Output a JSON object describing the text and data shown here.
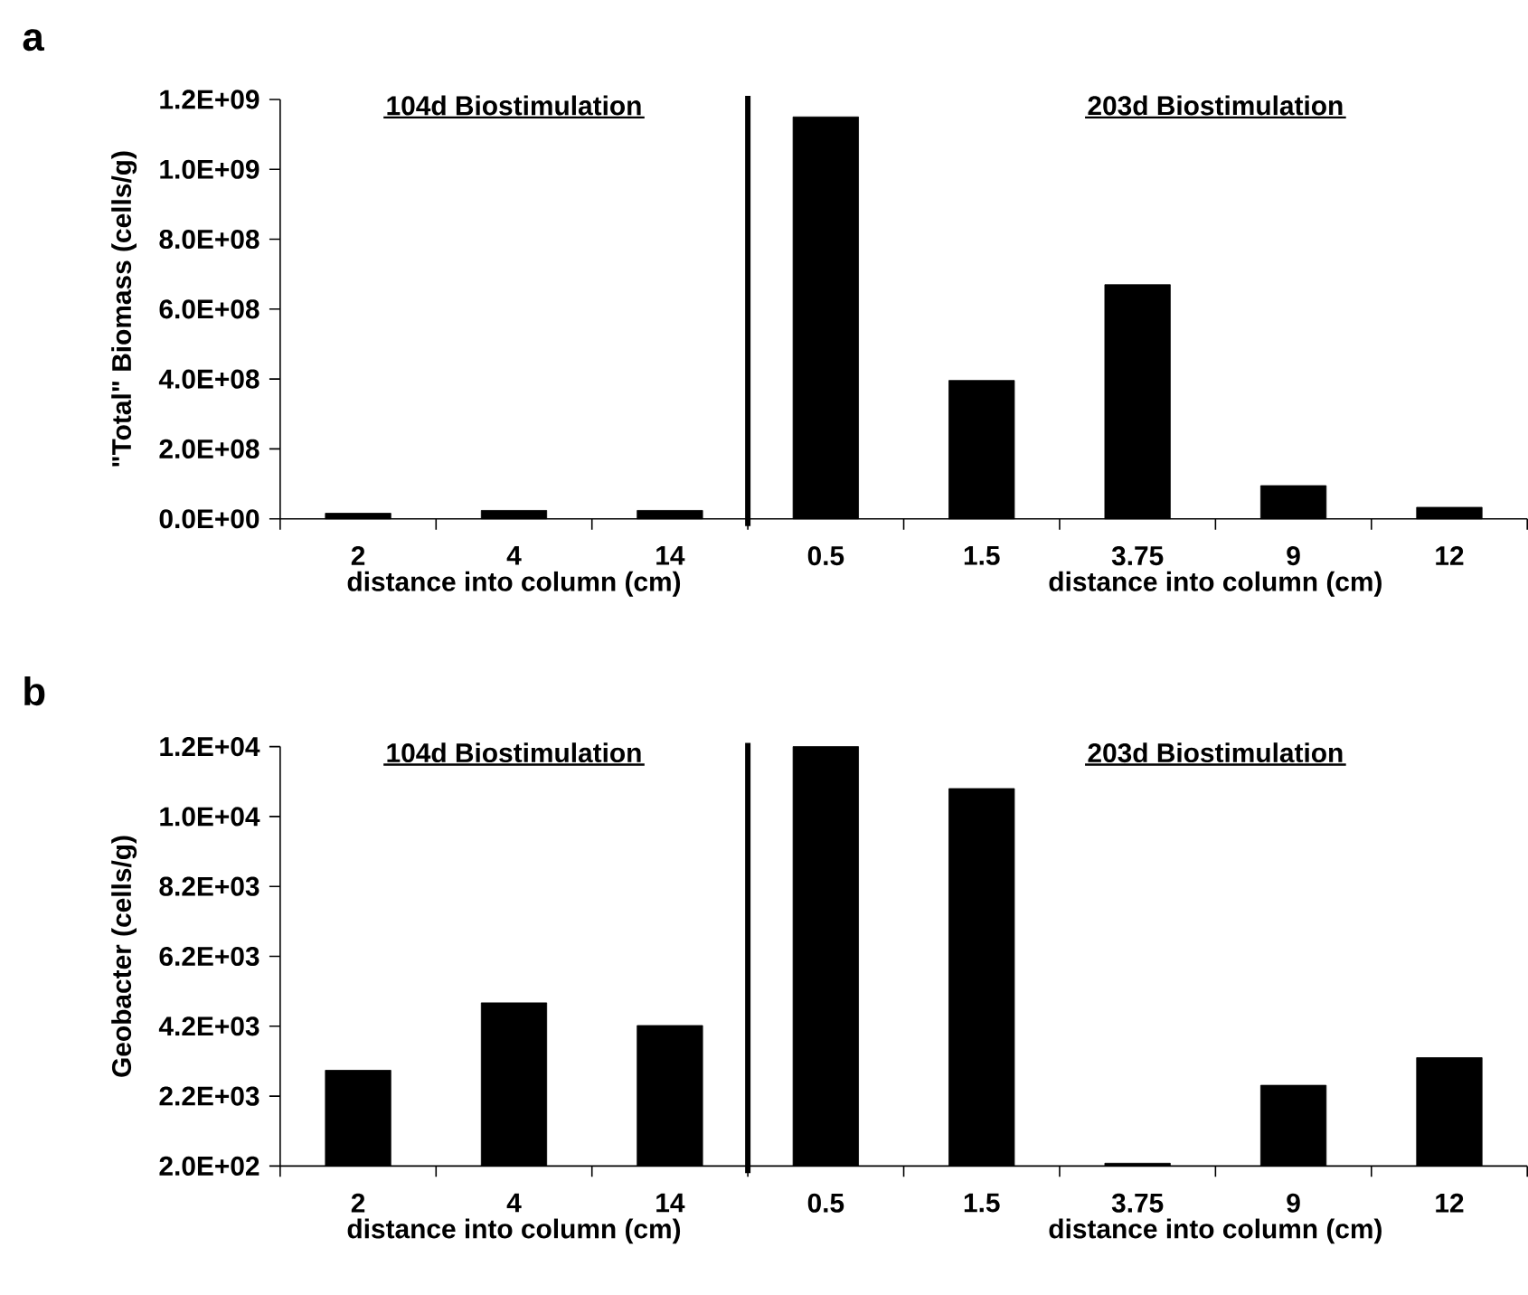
{
  "chart_data": [
    {
      "type": "bar",
      "ylabel": "\"Total\" Biomass (cells/g)",
      "xlabel": "distance into column (cm)",
      "categories": [
        "2",
        "4",
        "14",
        "0.5",
        "1.5",
        "3.75",
        "9",
        "12"
      ],
      "values": [
        16000000,
        24000000,
        24000000,
        1150000000,
        396000000,
        670000000,
        95000000,
        33000000
      ],
      "color": "#000000",
      "ylim": [
        0,
        1200000000
      ],
      "yticks": [
        {
          "value": 0,
          "label": "0.0E+00"
        },
        {
          "value": 200000000,
          "label": "2.0E+08"
        },
        {
          "value": 400000000,
          "label": "4.0E+08"
        },
        {
          "value": 600000000,
          "label": "6.0E+08"
        },
        {
          "value": 800000000,
          "label": "8.0E+08"
        },
        {
          "value": 1000000000,
          "label": "1.0E+09"
        },
        {
          "value": 1200000000,
          "label": "1.2E+09"
        }
      ],
      "annotations": [
        "a",
        "104d Biostimulation",
        "203d Biostimulation",
        "distance into column (cm)"
      ]
    },
    {
      "type": "bar",
      "ylabel": "Geobacter (cells/g)",
      "xlabel": "distance into column (cm)",
      "categories": [
        "2",
        "4",
        "14",
        "0.5",
        "1.5",
        "3.75",
        "9",
        "12"
      ],
      "values": [
        2940,
        4870,
        4220,
        12200,
        11000,
        280,
        2510,
        3300
      ],
      "color": "#000000",
      "ylim": [
        200,
        12200
      ],
      "yticks": [
        {
          "value": 200,
          "label": "2.0E+02"
        },
        {
          "value": 2200,
          "label": "2.2E+03"
        },
        {
          "value": 4200,
          "label": "4.2E+03"
        },
        {
          "value": 6200,
          "label": "6.2E+03"
        },
        {
          "value": 8200,
          "label": "8.2E+03"
        },
        {
          "value": 10200,
          "label": "1.0E+04"
        },
        {
          "value": 12200,
          "label": "1.2E+04"
        }
      ],
      "annotations": [
        "b",
        "104d Biostimulation",
        "203d Biostimulation",
        "distance into column (cm)"
      ]
    }
  ]
}
